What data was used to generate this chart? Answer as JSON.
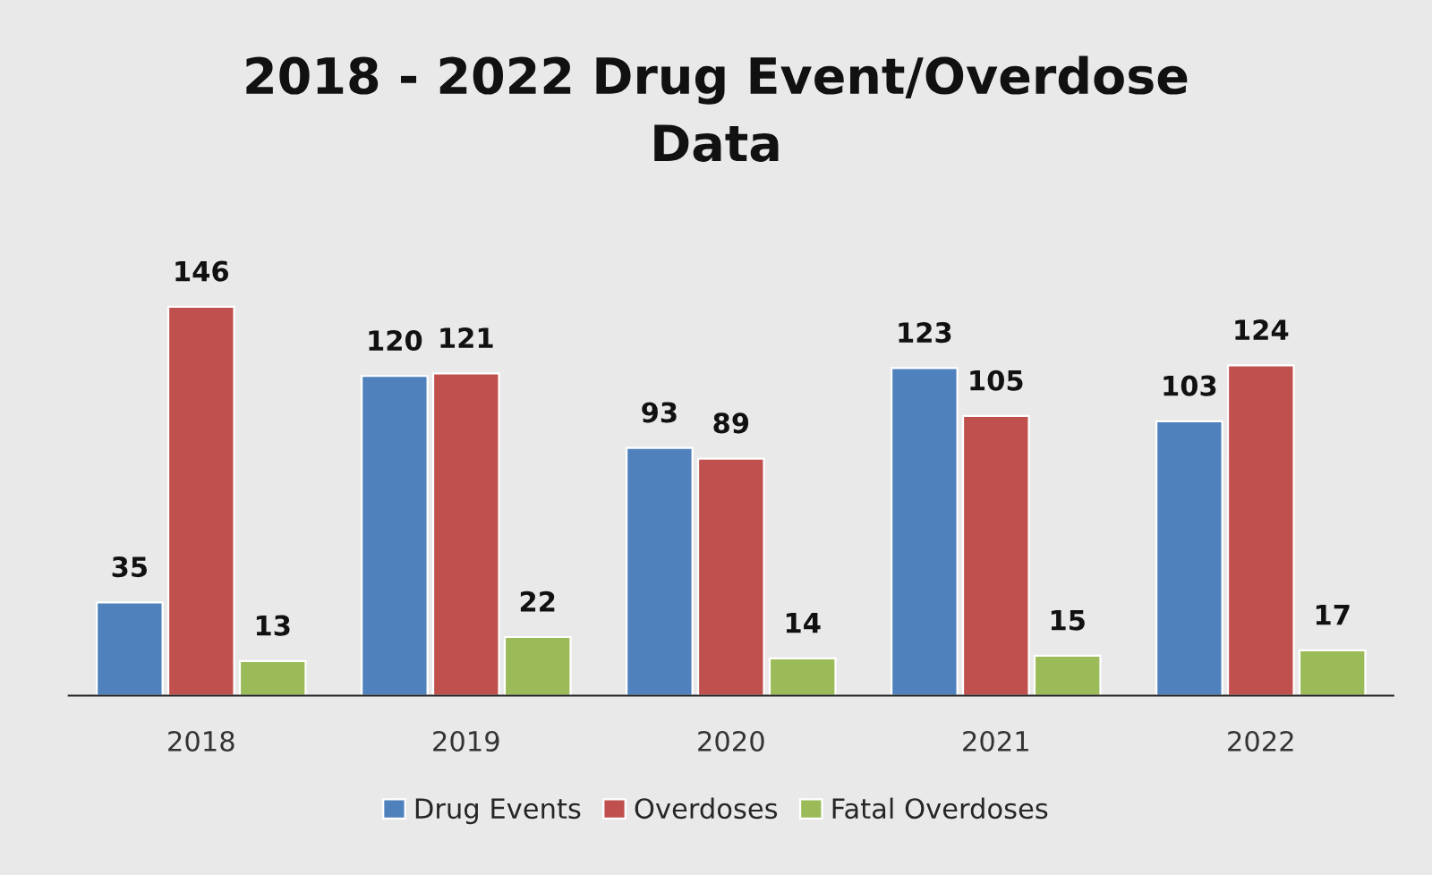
{
  "chart_data": {
    "type": "bar",
    "title": "2018 - 2022 Drug Event/Overdose Data",
    "categories": [
      "2018",
      "2019",
      "2020",
      "2021",
      "2022"
    ],
    "series": [
      {
        "name": "Drug Events",
        "color": "#4f81bd",
        "values": [
          35,
          120,
          93,
          123,
          103
        ]
      },
      {
        "name": "Overdoses",
        "color": "#c0504d",
        "values": [
          146,
          121,
          89,
          105,
          124
        ]
      },
      {
        "name": "Fatal Overdoses",
        "color": "#9bbb59",
        "values": [
          13,
          22,
          14,
          15,
          17
        ]
      }
    ],
    "data_labels": true,
    "legend": "bottom",
    "grid": false
  }
}
